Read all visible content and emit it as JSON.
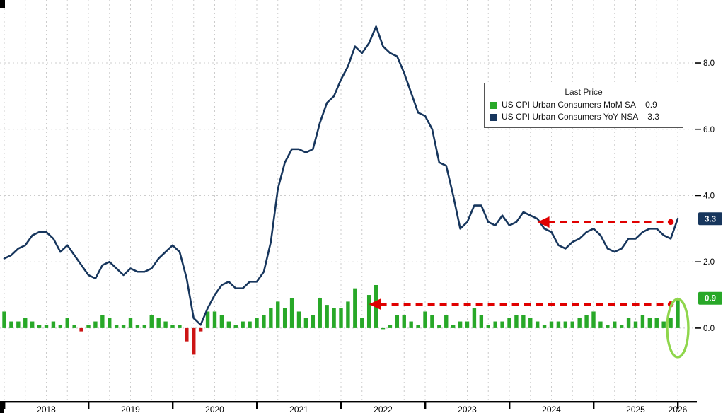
{
  "legend": {
    "title": "Last Price",
    "items": [
      {
        "swatch": "#28a828",
        "label": "US CPI Urban Consumers MoM SA",
        "value": "0.9"
      },
      {
        "swatch": "#17365d",
        "label": "US CPI Urban Consumers YoY NSA",
        "value": "3.3"
      }
    ]
  },
  "chart_data": {
    "type": "bar+line combo",
    "months": 97,
    "x_start": "2018-01",
    "x_end": "2026-01",
    "x_years": [
      "2018",
      "2019",
      "2020",
      "2021",
      "2022",
      "2023",
      "2024",
      "2025",
      "2026"
    ],
    "ylim": [
      -2.2,
      9.9
    ],
    "y_ticks": [
      0,
      2,
      4,
      6,
      8
    ],
    "y_tick_labels": [
      "0.0",
      "2.0",
      "4.0",
      "6.0",
      "8.0"
    ],
    "grid": "dashed, quarterly vertical + every 2.0 horizontal",
    "legend_position": "upper right",
    "series": [
      {
        "name": "US CPI Urban Consumers MoM SA",
        "type": "bar",
        "color": "#28a828",
        "negative_color": "#cc1414",
        "last_value": 0.9,
        "values": [
          0.5,
          0.2,
          0.2,
          0.3,
          0.2,
          0.1,
          0.1,
          0.2,
          0.1,
          0.3,
          0.1,
          -0.1,
          0.1,
          0.2,
          0.4,
          0.3,
          0.1,
          0.1,
          0.3,
          0.1,
          0.1,
          0.4,
          0.3,
          0.2,
          0.1,
          0.1,
          -0.4,
          -0.8,
          -0.1,
          0.5,
          0.5,
          0.4,
          0.2,
          0.1,
          0.2,
          0.2,
          0.3,
          0.4,
          0.6,
          0.8,
          0.6,
          0.9,
          0.5,
          0.3,
          0.4,
          0.9,
          0.7,
          0.6,
          0.6,
          0.8,
          1.2,
          0.3,
          1.0,
          1.3,
          0.0,
          0.1,
          0.4,
          0.4,
          0.2,
          0.1,
          0.5,
          0.4,
          0.1,
          0.4,
          0.1,
          0.2,
          0.2,
          0.6,
          0.4,
          0.1,
          0.2,
          0.2,
          0.3,
          0.4,
          0.4,
          0.3,
          0.2,
          0.1,
          0.2,
          0.2,
          0.2,
          0.2,
          0.3,
          0.4,
          0.5,
          0.2,
          0.1,
          0.2,
          0.1,
          0.3,
          0.2,
          0.4,
          0.3,
          0.3,
          0.2,
          0.3,
          0.9
        ]
      },
      {
        "name": "US CPI Urban Consumers YoY NSA",
        "type": "line",
        "color": "#17365d",
        "last_value": 3.3,
        "values": [
          2.1,
          2.2,
          2.4,
          2.5,
          2.8,
          2.9,
          2.9,
          2.7,
          2.3,
          2.5,
          2.2,
          1.9,
          1.6,
          1.5,
          1.9,
          2.0,
          1.8,
          1.6,
          1.8,
          1.7,
          1.7,
          1.8,
          2.1,
          2.3,
          2.5,
          2.3,
          1.5,
          0.3,
          0.1,
          0.6,
          1.0,
          1.3,
          1.4,
          1.2,
          1.2,
          1.4,
          1.4,
          1.7,
          2.6,
          4.2,
          5.0,
          5.4,
          5.4,
          5.3,
          5.4,
          6.2,
          6.8,
          7.0,
          7.5,
          7.9,
          8.5,
          8.3,
          8.6,
          9.1,
          8.5,
          8.3,
          8.2,
          7.7,
          7.1,
          6.5,
          6.4,
          6.0,
          5.0,
          4.9,
          4.0,
          3.0,
          3.2,
          3.7,
          3.7,
          3.2,
          3.1,
          3.4,
          3.1,
          3.2,
          3.5,
          3.4,
          3.3,
          3.0,
          2.9,
          2.5,
          2.4,
          2.6,
          2.7,
          2.9,
          3.0,
          2.8,
          2.4,
          2.3,
          2.4,
          2.7,
          2.7,
          2.9,
          3.0,
          3.0,
          2.8,
          2.7,
          3.3
        ]
      }
    ],
    "annotations": {
      "badges": [
        {
          "label": "3.3",
          "value": 3.3,
          "color": "#17365d",
          "text_color": "#ffffff"
        },
        {
          "label": "0.9",
          "value": 0.9,
          "color": "#28a828",
          "text_color": "#ffffff"
        }
      ],
      "arrows": [
        {
          "color": "#e00000",
          "y_value": 3.2,
          "head_month": 77,
          "tail_month": 95
        },
        {
          "color": "#e00000",
          "y_value": 0.72,
          "head_month": 53,
          "tail_month": 95
        }
      ],
      "ellipse": {
        "color": "#8fd64c",
        "month": 96,
        "center_value": 0.0
      }
    }
  }
}
